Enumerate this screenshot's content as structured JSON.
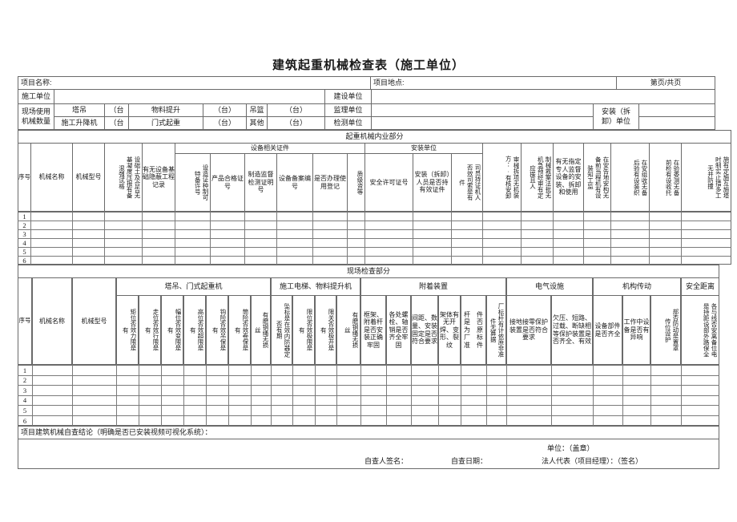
{
  "title": "建筑起重机械检查表（施工单位）",
  "info": {
    "project_name": "项目名称:",
    "project_site": "项目地点:",
    "page": "第页/共页",
    "construction_unit": "施工单位",
    "build_unit": "建设单位",
    "site_usage": "现场使用\n机械数量",
    "tower_crane": "塔吊",
    "lift": "施工升降机",
    "tai_open1": "（台",
    "tai_open2": "（台",
    "hoist": "物料提升",
    "gantry": "门式起重",
    "tai1": "（台）",
    "tai2": "（台）",
    "gondola": "吊篮",
    "other": "其他",
    "tai3": "（台）",
    "tai4": "（台）",
    "supervision_unit": "监理单位",
    "testing_unit": "检测单位",
    "install_unit": "安装（拆\n卸）单位"
  },
  "t1": {
    "band": "起重机械内业部分",
    "seq": "序号",
    "name": "机械名称",
    "model": "机械型号",
    "concrete": "设础土及合告无\n基凝度压报有备\n混强试格",
    "hidden": "有无设备基础隐蔽工程记录",
    "cert_group": "设备相关证件",
    "special": "设造证种制可\n特备许号",
    "product": "产品合格证号",
    "manufacture": "制造监督检测证明号",
    "record": "设备备案编号",
    "register": "是否办理使用登记",
    "grade": "质级资等",
    "install_group": "安装单位",
    "permit": "安全许可证号",
    "installer": "安装（拆卸）人员是否持有效证件",
    "driver": "司员持证机人\n否效司索是有\n件",
    "plan": "审械拆项无机装\n方∶·有核安卸",
    "emergency": "制械救案法批无\n机急预经审有定\n应援且人",
    "supervisor": "有无指定专人监督设备的安装、拆卸和使用",
    "notify": "在安告地安构无\n备前当程机有设\n装知工监",
    "acceptance": "在安组收无备\n后验有设装织",
    "entrust": "在验委测无备\n前检有设收托",
    "collision": "施有定施互施塔\n时制实止措多工\n无并防撞",
    "rows": [
      "1",
      "2",
      "3",
      "4",
      "5",
      "6"
    ]
  },
  "t2": {
    "band": "现场检查部分",
    "seq": "序号",
    "name": "机械名称",
    "model": "机械型号",
    "g_tower": "塔吊、门式起重机",
    "g_lift": "施工电梯、物料提升机",
    "g_attach": "附着装置",
    "g_elec": "电气设施",
    "g_drive": "机构传动",
    "g_dist": "安全距离",
    "tc1": "矩位否效力限是\n有",
    "tc2": "走位否效行限是\n有",
    "tc3": "幅位否效变限是\n有",
    "tc4": "高位否效超限是\n有",
    "tc5": "钩险否效吊保是\n有",
    "tc6": "筒险否效卷保是\n有",
    "tc7": "有磨钢绳无损\n丝",
    "lf1": "坠标是在效内防器定\n否有期",
    "lf2": "限位否效极限是\n有",
    "lf3": "限关否效极开是\n有",
    "lf4": "有磨钢绳无损\n丝",
    "at1": "框架、附着杆是否安装正确牢固",
    "at2": "各处螺栓、轴销是否齐全牢固",
    "at3": "间距、数量、安装固定是否符合要求",
    "at4": "架体有无开焊、变形、裂纹",
    "at5": "杆　件\n是　否\n为　原\n厂　标\n准　件",
    "at6": "厂标杆有计依原非准\n件无算据",
    "el1": "接地接零保护装置是否符合要求",
    "el2": "欠压、短路、过载、断缺相等保护装置是否齐全、有效",
    "dr1": "设备部件是否齐全",
    "dr2": "工作中设备是否有异响",
    "dr3": "部否防动是置罩\n传位设护",
    "ds1": "各与线否安离备位电\n是持距设部外路保全",
    "rows": [
      "1",
      "2",
      "3",
      "4",
      "5",
      "6"
    ]
  },
  "footer": {
    "conclusion": "项目建筑机械自查结论（明确是否已安装视频可视化系统）：",
    "seal": "单位：（盖章）",
    "sign": "自查人签名：",
    "date": "自查日期：",
    "legal": "法人代表（项目经理）：（签名）"
  }
}
